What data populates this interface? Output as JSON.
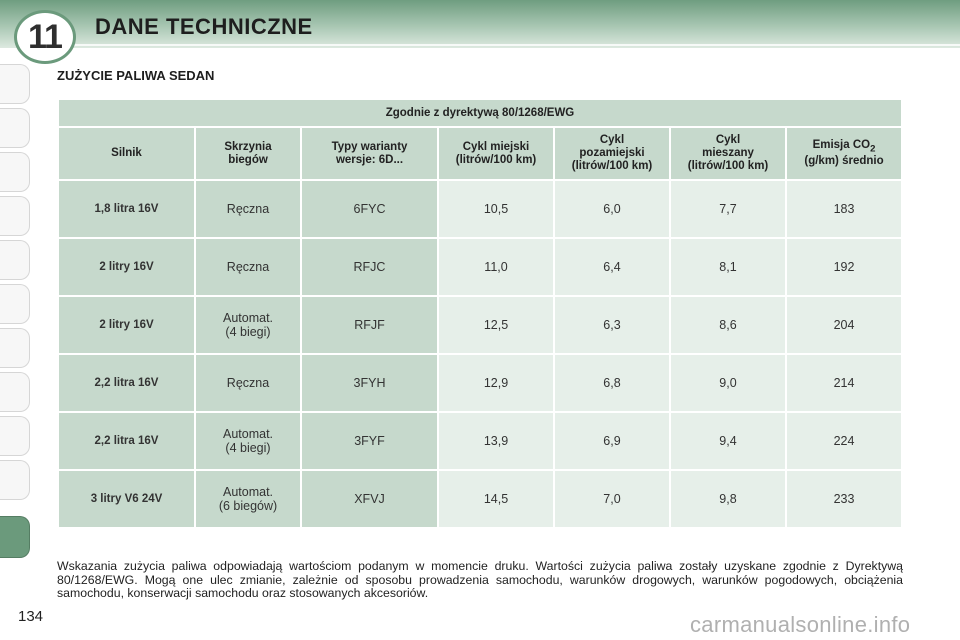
{
  "header": {
    "chapter_number": "11",
    "chapter_title": "DANE TECHNICZNE"
  },
  "section_title": "ZUŻYCIE PALIWA SEDAN",
  "table": {
    "caption": "Zgodnie z dyrektywą 80/1268/EWG",
    "columns": [
      "Silnik",
      "Skrzynia biegów",
      "Typy warianty wersje: 6D...",
      "Cykl miejski (litrów/100 km)",
      "Cykl pozamiejski (litrów/100 km)",
      "Cykl mieszany (litrów/100 km)",
      "Emisja CO2 (g/km) średnio"
    ],
    "rows": [
      [
        "1,8 litra 16V",
        "Ręczna",
        "6FYC",
        "10,5",
        "6,0",
        "7,7",
        "183"
      ],
      [
        "2 litry 16V",
        "Ręczna",
        "RFJC",
        "11,0",
        "6,4",
        "8,1",
        "192"
      ],
      [
        "2 litry 16V",
        "Automat. (4 biegi)",
        "RFJF",
        "12,5",
        "6,3",
        "8,6",
        "204"
      ],
      [
        "2,2 litra 16V",
        "Ręczna",
        "3FYH",
        "12,9",
        "6,8",
        "9,0",
        "214"
      ],
      [
        "2,2 litra 16V",
        "Automat. (4 biegi)",
        "3FYF",
        "13,9",
        "6,9",
        "9,4",
        "224"
      ],
      [
        "3 litry V6 24V",
        "Automat. (6 biegów)",
        "XFVJ",
        "14,5",
        "7,0",
        "9,8",
        "233"
      ]
    ]
  },
  "footnote": "Wskazania zużycia paliwa odpowiadają wartościom podanym w momencie druku. Wartości zużycia paliwa zostały uzyskane zgodnie z Dyrektywą 80/1268/EWG. Mogą one ulec zmianie, zależnie od sposobu prowadzenia samochodu, warunków drogowych, warunków pogodowych, obciążenia samochodu, konserwacji samochodu oraz stosowanych akcesoriów.",
  "page_number": "134",
  "watermark": "carmanualsonline.info",
  "colors": {
    "accent": "#6b9a7c",
    "cell_header": "#c6d9cc",
    "cell_body": "#e6efe9"
  }
}
